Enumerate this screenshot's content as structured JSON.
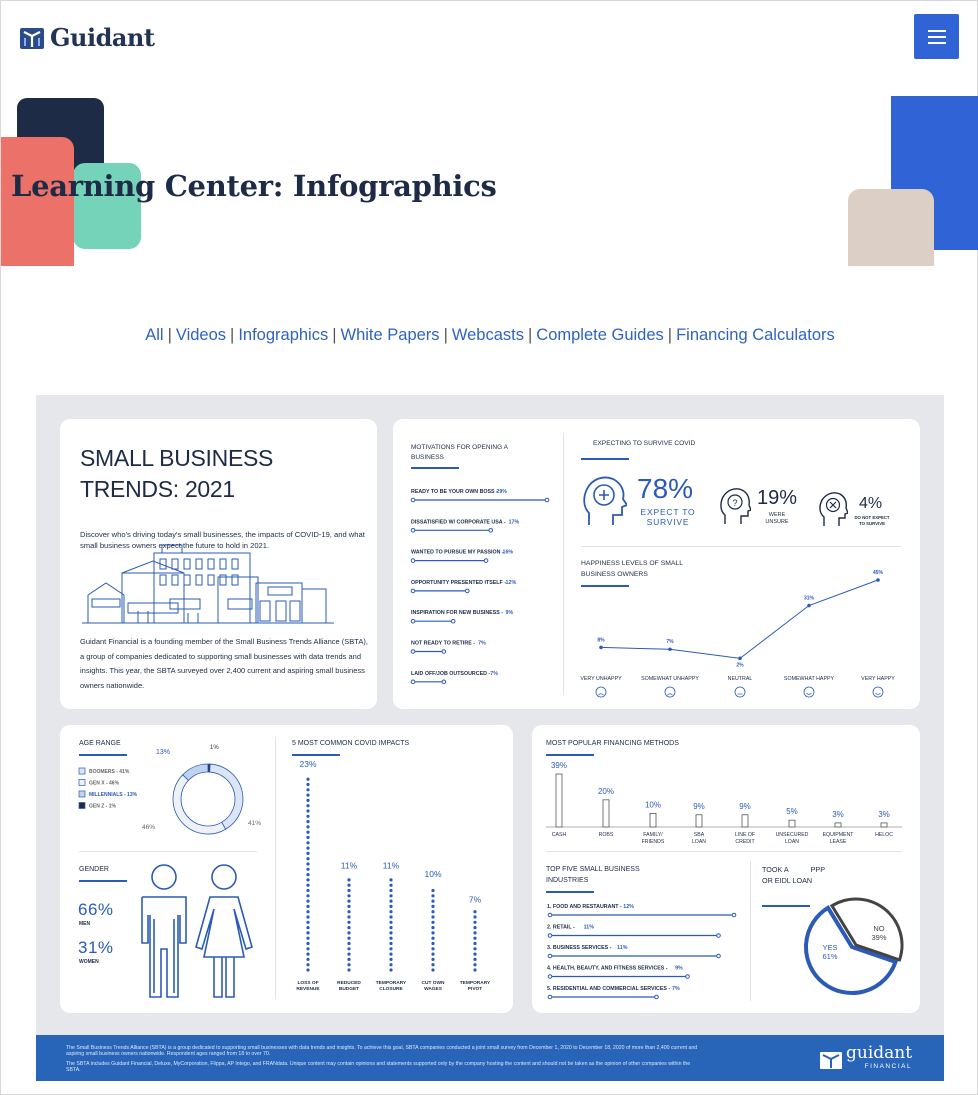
{
  "brand": {
    "name": "Guidant"
  },
  "hero": {
    "title": "Learning Center: Infographics"
  },
  "filters": [
    "All",
    "Videos",
    "Infographics",
    "White Papers",
    "Webcasts",
    "Complete Guides",
    "Financing Calculators"
  ],
  "icons": {
    "logo": "guidant-logo-icon",
    "menu": "hamburger-menu-icon"
  },
  "colors": {
    "accent": "#2f63d6",
    "navy": "#1d2b46",
    "coral": "#ec7168",
    "mint": "#74d3b8",
    "sand": "#dcd0c6",
    "link": "#3063bf"
  },
  "infographic": {
    "title_line1": "SMALL BUSINESS",
    "title_line2": "TRENDS: 2021",
    "intro": "Discover who's driving today's small businesses, the impacts of COVID-19, and what small business owners expect the future to hold in 2021.",
    "body": "Guidant Financial is a founding member of the Small Business Trends Alliance (SBTA), a group of companies dedicated to supporting small businesses with data trends and insights. This year, the SBTA surveyed over 2,400 current and aspiring small business owners nationwide.",
    "motivations": {
      "title_line1": "MOTIVATIONS FOR OPENING A",
      "title_line2": "BUSINESS",
      "items": [
        {
          "label": "READY TO BE YOUR OWN BOSS",
          "pct": "29%",
          "value": 29
        },
        {
          "label": "DISSATISFIED W/ CORPORATE USA",
          "pct": "17%",
          "value": 17
        },
        {
          "label": "WANTED TO PURSUE MY PASSION",
          "pct": "16%",
          "value": 16
        },
        {
          "label": "OPPORTUNITY PRESENTED ITSELF",
          "pct": "12%",
          "value": 12
        },
        {
          "label": "INSPIRATION FOR NEW BUSINESS",
          "pct": "9%",
          "value": 9
        },
        {
          "label": "NOT READY TO RETIRE",
          "pct": "7%",
          "value": 7
        },
        {
          "label": "LAID OFF/JOB OUTSOURCED",
          "pct": "7%",
          "value": 7
        }
      ]
    },
    "survive": {
      "title": "EXPECTING TO SURVIVE COVID",
      "expect_pct": "78%",
      "expect_label_1": "EXPECT TO",
      "expect_label_2": "SURVIVE",
      "unsure_pct": "19%",
      "unsure_label_1": "WERE",
      "unsure_label_2": "UNSURE",
      "not_pct": "4%",
      "not_label_1": "DO NOT EXPECT",
      "not_label_2": "TO SURVIVE"
    },
    "happiness": {
      "title_line1": "HAPPINESS LEVELS OF SMALL",
      "title_line2": "BUSINESS OWNERS",
      "categories": [
        "VERY UNHAPPY",
        "SOMEWHAT UNHAPPY",
        "NEUTRAL",
        "SOMEWHAT HAPPY",
        "VERY HAPPY"
      ],
      "values": [
        8,
        7,
        2,
        31,
        45
      ],
      "labels": [
        "8%",
        "7%",
        "2%",
        "31%",
        "45%"
      ]
    },
    "age": {
      "title": "AGE RANGE",
      "legend": [
        "BOOMERS - 41%",
        "GEN X - 46%",
        "MILLENNIALS - 13%",
        "GEN Z - 1%"
      ],
      "values": [
        41,
        46,
        13,
        1
      ],
      "labels": [
        "41%",
        "46%",
        "13%",
        "1%"
      ]
    },
    "gender": {
      "title": "GENDER",
      "men_pct": "66%",
      "men_label": "MEN",
      "women_pct": "31%",
      "women_label": "WOMEN"
    },
    "covid_impacts": {
      "title": "5 MOST COMMON COVID IMPACTS",
      "items": [
        {
          "l1": "LOSS OF",
          "l2": "REVENUE",
          "pct": "23%",
          "value": 23
        },
        {
          "l1": "REDUCED",
          "l2": "BUDGET",
          "pct": "11%",
          "value": 11
        },
        {
          "l1": "TEMPORARY",
          "l2": "CLOSURE",
          "pct": "11%",
          "value": 11
        },
        {
          "l1": "CUT OWN",
          "l2": "WAGES",
          "pct": "10%",
          "value": 10
        },
        {
          "l1": "TEMPORARY",
          "l2": "PIVOT",
          "pct": "7%",
          "value": 7
        }
      ]
    },
    "financing": {
      "title": "MOST POPULAR FINANCING METHODS",
      "items": [
        {
          "l1": "CASH",
          "l2": "",
          "pct": "39%",
          "value": 39
        },
        {
          "l1": "ROBS",
          "l2": "",
          "pct": "20%",
          "value": 20
        },
        {
          "l1": "FAMILY/",
          "l2": "FRIENDS",
          "pct": "10%",
          "value": 10
        },
        {
          "l1": "SBA",
          "l2": "LOAN",
          "pct": "9%",
          "value": 9
        },
        {
          "l1": "LINE OF",
          "l2": "CREDIT",
          "pct": "9%",
          "value": 9
        },
        {
          "l1": "UNSECURED",
          "l2": "LOAN",
          "pct": "5%",
          "value": 5
        },
        {
          "l1": "EQUIPMENT",
          "l2": "LEASE",
          "pct": "3%",
          "value": 3
        },
        {
          "l1": "HELOC",
          "l2": "",
          "pct": "3%",
          "value": 3
        }
      ]
    },
    "industries": {
      "title_line1": "TOP FIVE SMALL BUSINESS",
      "title_line2": "INDUSTRIES",
      "items": [
        {
          "label": "1. FOOD AND RESTAURANT",
          "pct": "12%",
          "value": 12
        },
        {
          "label": "2. RETAIL",
          "pct": "11%",
          "value": 11
        },
        {
          "label": "3. BUSINESS SERVICES",
          "pct": "11%",
          "value": 11
        },
        {
          "label": "4. HEALTH, BEAUTY, AND FITNESS SERVICES",
          "pct": "9%",
          "value": 9
        },
        {
          "label": "5. RESIDENTIAL AND COMMERCIAL SERVICES",
          "pct": "7%",
          "value": 7
        }
      ]
    },
    "ppp": {
      "title_a": "TOOK A",
      "title_b": "PPP",
      "title_c": "OR EIDL LOAN",
      "yes_label": "YES",
      "yes_pct": "61%",
      "no_label": "NO",
      "no_pct": "39%",
      "yes_value": 61,
      "no_value": 39
    },
    "footer": {
      "line1": "The Small Business Trends Alliance (SBTA) is a group dedicated to supporting small businesses with data trends and insights. To achieve this goal, SBTA companies conducted a joint small survey from December 1, 2020 to December 18, 2020 of more than 2,400 current and aspiring small business owners nationwide. Respondent ages ranged from 18 to over 70.",
      "line2": "The SBTA includes Guidant Financial, Deluxe, MyCorporation, Flippa, AP Intego, and FRANdata. Unique content may contain opinions and statements supported only by the company hosting the content and should not be taken as the opinion of other companies within the SBTA.",
      "logo_word": "guidant",
      "logo_sub": "FINANCIAL"
    }
  }
}
